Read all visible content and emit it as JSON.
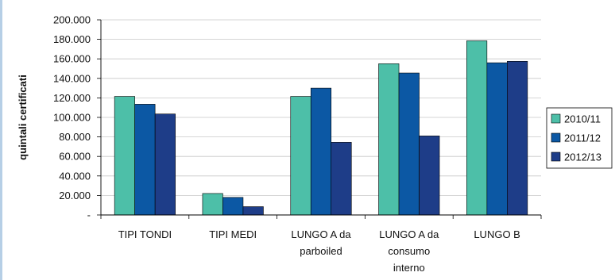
{
  "chart_data": {
    "type": "bar",
    "title": "",
    "xlabel": "",
    "ylabel": "quintali certificati",
    "ylim": [
      0,
      200000
    ],
    "yticks": [
      0,
      20000,
      40000,
      60000,
      80000,
      100000,
      120000,
      140000,
      160000,
      180000,
      200000
    ],
    "ytick_labels": [
      "-",
      "20.000",
      "40.000",
      "60.000",
      "80.000",
      "100.000",
      "120.000",
      "140.000",
      "160.000",
      "180.000",
      "200.000"
    ],
    "grid": true,
    "legend_position": "right",
    "categories": [
      [
        "TIPI TONDI"
      ],
      [
        "TIPI MEDI"
      ],
      [
        "LUNGO A da",
        "parboiled"
      ],
      [
        "LUNGO A da",
        "consumo",
        "interno"
      ],
      [
        "LUNGO B"
      ]
    ],
    "series": [
      {
        "name": "2010/11",
        "color": "#4dbfa8",
        "values": [
          121500,
          22000,
          121500,
          155000,
          178500
        ]
      },
      {
        "name": "2011/12",
        "color": "#0c58a4",
        "values": [
          113500,
          18000,
          130000,
          145500,
          156000
        ]
      },
      {
        "name": "2012/13",
        "color": "#1e3d88",
        "values": [
          103500,
          8500,
          74500,
          81000,
          157500
        ]
      }
    ]
  }
}
